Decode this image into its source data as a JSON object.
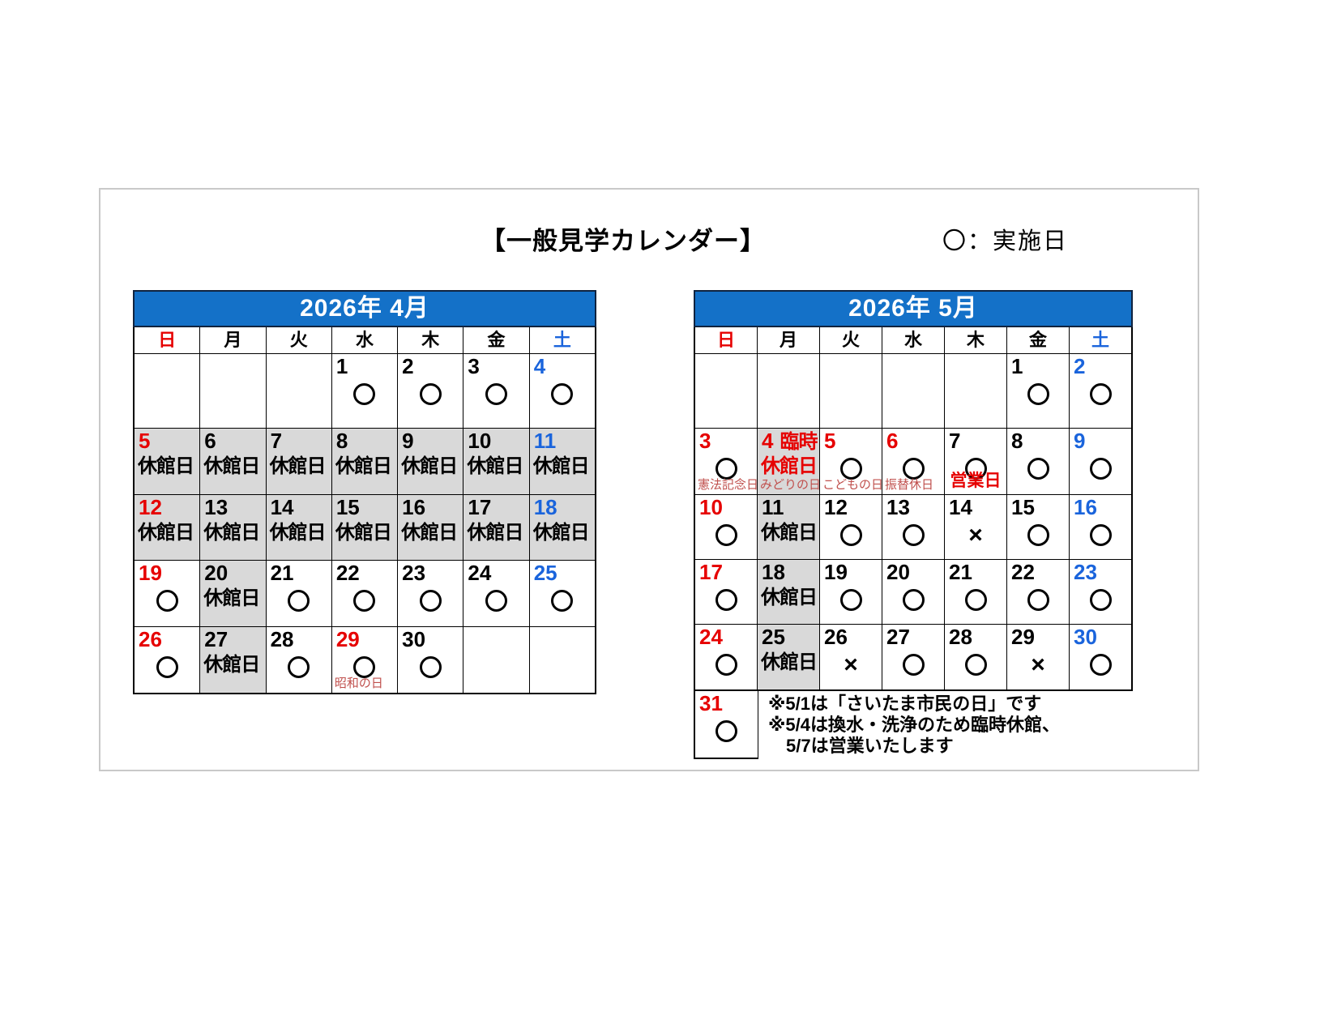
{
  "page": {
    "title": "【一般見学カレンダー】",
    "legend": "〇：実施日"
  },
  "colors": {
    "header_blue": "#1471c8",
    "date_red": "#e60000",
    "date_blue": "#1a64dc",
    "label_red": "#c0504d",
    "accent_red": "#e60000",
    "gray_bg": "#d9d9d9"
  },
  "marks": {
    "open": "〇",
    "cross": "×"
  },
  "weekdays": [
    {
      "key": "sun",
      "label": "日",
      "color": "red"
    },
    {
      "key": "mon",
      "label": "月",
      "color": "black"
    },
    {
      "key": "tue",
      "label": "火",
      "color": "black"
    },
    {
      "key": "wed",
      "label": "水",
      "color": "black"
    },
    {
      "key": "thu",
      "label": "木",
      "color": "black"
    },
    {
      "key": "fri",
      "label": "金",
      "color": "black"
    },
    {
      "key": "sat",
      "label": "土",
      "color": "blue"
    }
  ],
  "april": {
    "title": "2026年 4月",
    "rows": [
      [
        null,
        null,
        null,
        {
          "date": "1",
          "mark": "circle"
        },
        {
          "date": "2",
          "mark": "circle"
        },
        {
          "date": "3",
          "mark": "circle"
        },
        {
          "date": "4",
          "color": "blue",
          "mark": "circle"
        }
      ],
      [
        {
          "date": "5",
          "color": "red",
          "closed": "休館日"
        },
        {
          "date": "6",
          "closed": "休館日"
        },
        {
          "date": "7",
          "closed": "休館日"
        },
        {
          "date": "8",
          "closed": "休館日"
        },
        {
          "date": "9",
          "closed": "休館日"
        },
        {
          "date": "10",
          "closed": "休館日"
        },
        {
          "date": "11",
          "color": "blue",
          "closed": "休館日"
        }
      ],
      [
        {
          "date": "12",
          "color": "red",
          "closed": "休館日"
        },
        {
          "date": "13",
          "closed": "休館日"
        },
        {
          "date": "14",
          "closed": "休館日"
        },
        {
          "date": "15",
          "closed": "休館日"
        },
        {
          "date": "16",
          "closed": "休館日"
        },
        {
          "date": "17",
          "closed": "休館日"
        },
        {
          "date": "18",
          "color": "blue",
          "closed": "休館日"
        }
      ],
      [
        {
          "date": "19",
          "color": "red",
          "mark": "circle"
        },
        {
          "date": "20",
          "closed": "休館日"
        },
        {
          "date": "21",
          "mark": "circle"
        },
        {
          "date": "22",
          "mark": "circle"
        },
        {
          "date": "23",
          "mark": "circle"
        },
        {
          "date": "24",
          "mark": "circle"
        },
        {
          "date": "25",
          "color": "blue",
          "mark": "circle"
        }
      ],
      [
        {
          "date": "26",
          "color": "red",
          "mark": "circle"
        },
        {
          "date": "27",
          "closed": "休館日"
        },
        {
          "date": "28",
          "mark": "circle"
        },
        {
          "date": "29",
          "color": "red",
          "mark": "circle",
          "label": "昭和の日"
        },
        {
          "date": "30",
          "mark": "circle"
        },
        null,
        null
      ]
    ]
  },
  "may": {
    "title": "2026年 5月",
    "rows": [
      [
        null,
        null,
        null,
        null,
        null,
        {
          "date": "1",
          "mark": "circle"
        },
        {
          "date": "2",
          "color": "blue",
          "mark": "circle"
        }
      ],
      [
        {
          "date": "3",
          "color": "red",
          "mark": "circle",
          "label": "憲法記念日"
        },
        {
          "date": "4",
          "color": "red",
          "prefix": "臨時",
          "closed": "休館日",
          "closedColor": "red",
          "label": "みどりの日"
        },
        {
          "date": "5",
          "color": "red",
          "mark": "circle",
          "label": "こどもの日"
        },
        {
          "date": "6",
          "color": "red",
          "mark": "circle",
          "label": "振替休日"
        },
        {
          "date": "7",
          "mark": "circle",
          "label": "営業日",
          "labelStyle": "bold"
        },
        {
          "date": "8",
          "mark": "circle"
        },
        {
          "date": "9",
          "color": "blue",
          "mark": "circle"
        }
      ],
      [
        {
          "date": "10",
          "color": "red",
          "mark": "circle"
        },
        {
          "date": "11",
          "closed": "休館日"
        },
        {
          "date": "12",
          "mark": "circle"
        },
        {
          "date": "13",
          "mark": "circle"
        },
        {
          "date": "14",
          "mark": "cross"
        },
        {
          "date": "15",
          "mark": "circle"
        },
        {
          "date": "16",
          "color": "blue",
          "mark": "circle"
        }
      ],
      [
        {
          "date": "17",
          "color": "red",
          "mark": "circle"
        },
        {
          "date": "18",
          "closed": "休館日"
        },
        {
          "date": "19",
          "mark": "circle"
        },
        {
          "date": "20",
          "mark": "circle"
        },
        {
          "date": "21",
          "mark": "circle"
        },
        {
          "date": "22",
          "mark": "circle"
        },
        {
          "date": "23",
          "color": "blue",
          "mark": "circle"
        }
      ],
      [
        {
          "date": "24",
          "color": "red",
          "mark": "circle"
        },
        {
          "date": "25",
          "closed": "休館日"
        },
        {
          "date": "26",
          "mark": "cross"
        },
        {
          "date": "27",
          "mark": "circle"
        },
        {
          "date": "28",
          "mark": "circle"
        },
        {
          "date": "29",
          "mark": "cross"
        },
        {
          "date": "30",
          "color": "blue",
          "mark": "circle"
        }
      ]
    ],
    "last_row": {
      "cell": {
        "date": "31",
        "color": "red",
        "mark": "circle"
      },
      "notes": [
        "※5/1は「さいたま市民の日」です",
        "※5/4は換水・洗浄のため臨時休館、",
        "　5/7は営業いたします"
      ]
    }
  }
}
